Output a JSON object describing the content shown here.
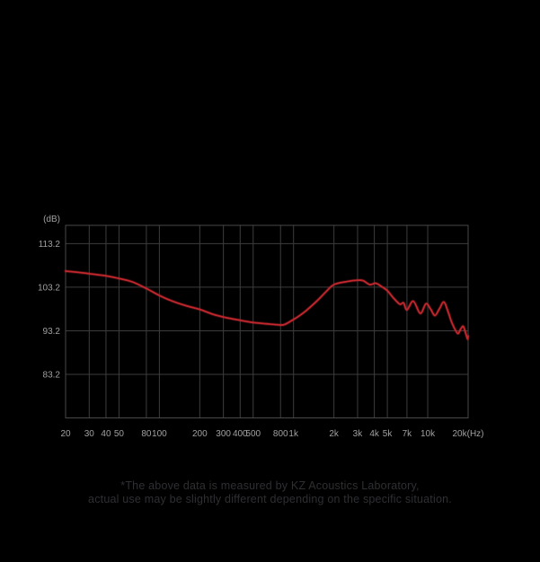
{
  "page": {
    "background": "#000000"
  },
  "chart_data": {
    "type": "line",
    "title": "",
    "x_scale": "log",
    "xlim": [
      20,
      20000
    ],
    "ylim": [
      73.2,
      117.4
    ],
    "grid": true,
    "legend_position": "none",
    "y_unit_label": "(dB)",
    "x_axis_unit": "Hz",
    "x_ticks": [
      {
        "value": 20,
        "label": "20"
      },
      {
        "value": 30,
        "label": "30"
      },
      {
        "value": 40,
        "label": "40"
      },
      {
        "value": 50,
        "label": "50"
      },
      {
        "value": 80,
        "label": "80"
      },
      {
        "value": 100,
        "label": "100"
      },
      {
        "value": 200,
        "label": "200"
      },
      {
        "value": 300,
        "label": "300"
      },
      {
        "value": 400,
        "label": "400"
      },
      {
        "value": 500,
        "label": "500"
      },
      {
        "value": 800,
        "label": "800"
      },
      {
        "value": 1000,
        "label": "1k"
      },
      {
        "value": 2000,
        "label": "2k"
      },
      {
        "value": 3000,
        "label": "3k"
      },
      {
        "value": 4000,
        "label": "4k"
      },
      {
        "value": 5000,
        "label": "5k"
      },
      {
        "value": 7000,
        "label": "7k"
      },
      {
        "value": 10000,
        "label": "10k"
      },
      {
        "value": 20000,
        "label": "20k(Hz)"
      }
    ],
    "y_ticks": [
      {
        "value": 113.2,
        "label": "113.2"
      },
      {
        "value": 103.2,
        "label": "103.2"
      },
      {
        "value": 93.2,
        "label": "93.2"
      },
      {
        "value": 83.2,
        "label": "83.2"
      }
    ],
    "series": [
      {
        "name": "frequency_response",
        "color": "#c1272d",
        "points": [
          [
            20,
            106.9
          ],
          [
            25,
            106.6
          ],
          [
            30,
            106.3
          ],
          [
            40,
            105.8
          ],
          [
            50,
            105.2
          ],
          [
            63,
            104.4
          ],
          [
            80,
            102.9
          ],
          [
            100,
            101.3
          ],
          [
            125,
            100.0
          ],
          [
            160,
            98.9
          ],
          [
            200,
            98.1
          ],
          [
            250,
            97.0
          ],
          [
            315,
            96.2
          ],
          [
            400,
            95.6
          ],
          [
            500,
            95.1
          ],
          [
            630,
            94.8
          ],
          [
            750,
            94.6
          ],
          [
            850,
            94.6
          ],
          [
            1000,
            95.8
          ],
          [
            1100,
            96.6
          ],
          [
            1250,
            97.9
          ],
          [
            1500,
            100.1
          ],
          [
            1750,
            102.2
          ],
          [
            2000,
            103.8
          ],
          [
            2500,
            104.5
          ],
          [
            3000,
            104.8
          ],
          [
            3300,
            104.7
          ],
          [
            3700,
            103.8
          ],
          [
            4100,
            104.1
          ],
          [
            4600,
            103.2
          ],
          [
            5000,
            102.4
          ],
          [
            5600,
            100.6
          ],
          [
            6200,
            99.3
          ],
          [
            6600,
            99.6
          ],
          [
            7000,
            98.0
          ],
          [
            7800,
            100.0
          ],
          [
            8800,
            97.2
          ],
          [
            9700,
            99.4
          ],
          [
            10500,
            98.2
          ],
          [
            11300,
            96.7
          ],
          [
            12200,
            98.2
          ],
          [
            13200,
            99.8
          ],
          [
            14200,
            97.5
          ],
          [
            15200,
            94.9
          ],
          [
            16700,
            92.6
          ],
          [
            17600,
            93.6
          ],
          [
            18400,
            94.2
          ],
          [
            19200,
            92.6
          ],
          [
            19800,
            91.3
          ],
          [
            20000,
            92.0
          ]
        ]
      }
    ]
  },
  "footer": {
    "line1": "*The above data is measured by KZ Acoustics Laboratory,",
    "line2": "actual use may be slightly different depending on the specific situation."
  },
  "colors": {
    "grid": "#3d3d3d",
    "plot_border": "#484848",
    "tick_text": "#a0a0a0",
    "footer_text": "#2d2f33",
    "curve": "#c1272d"
  }
}
